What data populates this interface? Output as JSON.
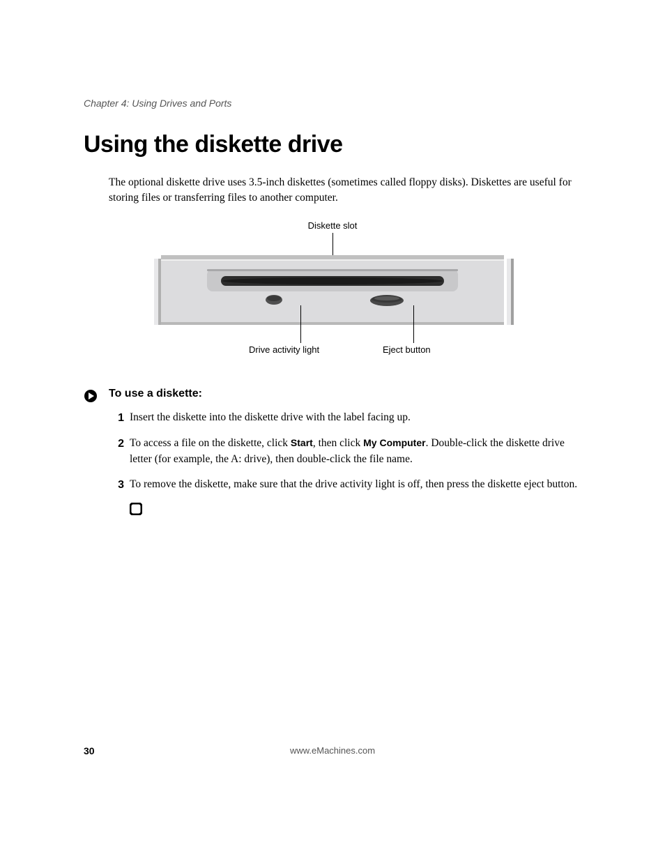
{
  "chapter_header": "Chapter 4: Using Drives and Ports",
  "section_title": "Using the diskette drive",
  "intro_text": "The optional diskette drive uses 3.5-inch diskettes (sometimes called floppy disks). Diskettes are useful for storing files or transferring files to another computer.",
  "diagram": {
    "top_label": "Diskette slot",
    "bottom_left_label": "Drive activity light",
    "bottom_right_label": "Eject button",
    "colors": {
      "frame_light": "#e8e8e8",
      "frame_dark": "#a8a8a8",
      "panel": "#d8d8d8",
      "slot": "#3a3a3a",
      "button": "#4a4a4a",
      "shadow": "#888888"
    }
  },
  "procedure": {
    "heading": "To use a diskette:",
    "steps": [
      {
        "number": "1",
        "text_parts": [
          {
            "t": "Insert the diskette into the diskette drive with the label facing up.",
            "bold": false
          }
        ]
      },
      {
        "number": "2",
        "text_parts": [
          {
            "t": "To access a file on the diskette, click ",
            "bold": false
          },
          {
            "t": "Start",
            "bold": true
          },
          {
            "t": ", then click ",
            "bold": false
          },
          {
            "t": "My Computer",
            "bold": true
          },
          {
            "t": ". Double-click the diskette drive letter (for example, the A: drive), then double-click the file name.",
            "bold": false
          }
        ]
      },
      {
        "number": "3",
        "text_parts": [
          {
            "t": "To remove the diskette, make sure that the drive activity light is off, then press the diskette eject button.",
            "bold": false
          }
        ]
      }
    ]
  },
  "footer": {
    "page_number": "30",
    "url": "www.eMachines.com"
  },
  "typography": {
    "body_font": "Georgia, serif",
    "heading_font": "Arial, Helvetica, sans-serif",
    "section_title_size": 34,
    "body_size": 15.5,
    "label_size": 13,
    "step_number_size": 16
  }
}
